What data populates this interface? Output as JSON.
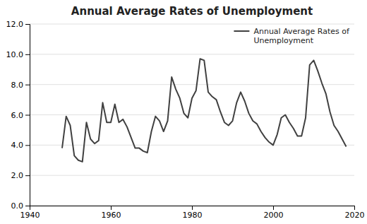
{
  "chart_data": {
    "type": "line",
    "title": "Annual Average Rates of Unemployment",
    "x": [
      1948,
      1949,
      1950,
      1951,
      1952,
      1953,
      1954,
      1955,
      1956,
      1957,
      1958,
      1959,
      1960,
      1961,
      1962,
      1963,
      1964,
      1965,
      1966,
      1967,
      1968,
      1969,
      1970,
      1971,
      1972,
      1973,
      1974,
      1975,
      1976,
      1977,
      1978,
      1979,
      1980,
      1981,
      1982,
      1983,
      1984,
      1985,
      1986,
      1987,
      1988,
      1989,
      1990,
      1991,
      1992,
      1993,
      1994,
      1995,
      1996,
      1997,
      1998,
      1999,
      2000,
      2001,
      2002,
      2003,
      2004,
      2005,
      2006,
      2007,
      2008,
      2009,
      2010,
      2011,
      2012,
      2013,
      2014,
      2015,
      2016,
      2017,
      2018
    ],
    "series": [
      {
        "name": "Annual Average Rates of\nUnemployment",
        "color": "#404040",
        "values": [
          3.8,
          5.9,
          5.3,
          3.3,
          3.0,
          2.9,
          5.5,
          4.4,
          4.1,
          4.3,
          6.8,
          5.5,
          5.5,
          6.7,
          5.5,
          5.7,
          5.2,
          4.5,
          3.8,
          3.8,
          3.6,
          3.5,
          4.9,
          5.9,
          5.6,
          4.9,
          5.6,
          8.5,
          7.7,
          7.1,
          6.1,
          5.8,
          7.1,
          7.6,
          9.7,
          9.6,
          7.5,
          7.2,
          7.0,
          6.2,
          5.5,
          5.3,
          5.6,
          6.8,
          7.5,
          6.9,
          6.1,
          5.6,
          5.4,
          4.9,
          4.5,
          4.2,
          4.0,
          4.7,
          5.8,
          6.0,
          5.5,
          5.1,
          4.6,
          4.6,
          5.8,
          9.3,
          9.6,
          8.9,
          8.1,
          7.4,
          6.2,
          5.3,
          4.9,
          4.4,
          3.9
        ]
      }
    ],
    "xlim": [
      1940,
      2020
    ],
    "xticks": [
      1940,
      1960,
      1980,
      2000,
      2020
    ],
    "ylim": [
      0.0,
      12.0
    ],
    "yticks": [
      {
        "value": 0.0,
        "label": "0.0"
      },
      {
        "value": 2.0,
        "label": "2.0"
      },
      {
        "value": 4.0,
        "label": "4.0"
      },
      {
        "value": 6.0,
        "label": "6.0"
      },
      {
        "value": 8.0,
        "label": "8.0"
      },
      {
        "value": 10.0,
        "label": "10.0"
      },
      {
        "value": 12.0,
        "label": "12.0"
      }
    ],
    "grid": true,
    "legend": "upper right"
  }
}
